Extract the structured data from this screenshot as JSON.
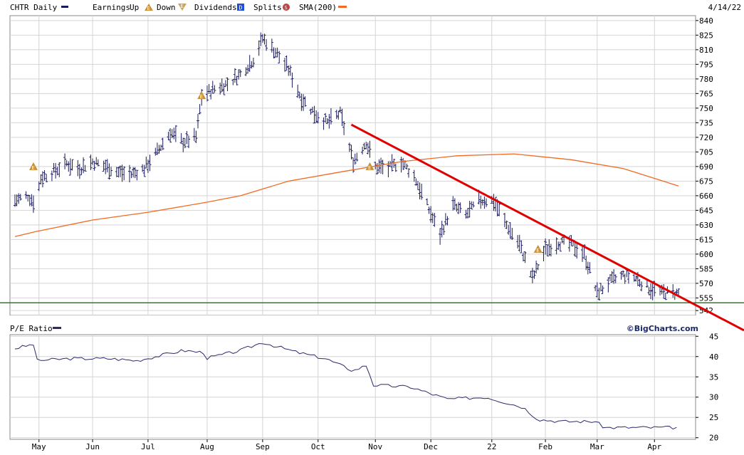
{
  "header": {
    "ticker_label": "CHTR Daily",
    "earnings_label": "Earnings",
    "up_label": "Up",
    "down_label": "Down",
    "dividends_label": "Dividends",
    "splits_label": "Splits",
    "sma_label": "SMA(200)",
    "date": "4/14/22",
    "markers": {
      "earnings": "E",
      "dividend": "D",
      "split": "S"
    }
  },
  "watermark": "©BigCharts.com",
  "colors": {
    "price_bars": "#1a1a5e",
    "sma": "#f26a21",
    "trendline": "#e00000",
    "support": "#2e7d1e",
    "pe_line": "#2b2b6b",
    "earnings_marker": "#c8903a",
    "dividend_marker": "#1f4fd6",
    "split_marker": "#c04040",
    "grid": "#d4d4d4"
  },
  "chart_data": [
    {
      "type": "line",
      "title": "CHTR Daily",
      "style": "ohlc-bars",
      "x_months": [
        "May",
        "Jun",
        "Jul",
        "Aug",
        "Sep",
        "Oct",
        "Nov",
        "Dec",
        "22",
        "Feb",
        "Mar",
        "Apr"
      ],
      "y_ticks": [
        542,
        555,
        570,
        585,
        600,
        615,
        630,
        645,
        660,
        675,
        690,
        705,
        720,
        735,
        750,
        765,
        780,
        795,
        810,
        825,
        840
      ],
      "ylim": [
        537,
        845
      ],
      "grid": true,
      "series": [
        {
          "name": "CHTR Daily",
          "points": [
            [
              "2021-04-20",
              655
            ],
            [
              "2021-04-27",
              660
            ],
            [
              "2021-05-01",
              652
            ],
            [
              "2021-05-04",
              678
            ],
            [
              "2021-05-11",
              685
            ],
            [
              "2021-05-18",
              693
            ],
            [
              "2021-05-25",
              688
            ],
            [
              "2021-06-01",
              695
            ],
            [
              "2021-06-08",
              690
            ],
            [
              "2021-06-15",
              684
            ],
            [
              "2021-06-22",
              682
            ],
            [
              "2021-06-29",
              688
            ],
            [
              "2021-07-06",
              705
            ],
            [
              "2021-07-13",
              725
            ],
            [
              "2021-07-20",
              715
            ],
            [
              "2021-07-27",
              720
            ],
            [
              "2021-07-30",
              762
            ],
            [
              "2021-08-06",
              770
            ],
            [
              "2021-08-13",
              775
            ],
            [
              "2021-08-20",
              785
            ],
            [
              "2021-08-27",
              800
            ],
            [
              "2021-09-01",
              822
            ],
            [
              "2021-09-08",
              808
            ],
            [
              "2021-09-15",
              790
            ],
            [
              "2021-09-22",
              760
            ],
            [
              "2021-09-29",
              745
            ],
            [
              "2021-10-06",
              735
            ],
            [
              "2021-10-13",
              745
            ],
            [
              "2021-10-20",
              695
            ],
            [
              "2021-10-27",
              715
            ],
            [
              "2021-11-01",
              690
            ],
            [
              "2021-11-08",
              688
            ],
            [
              "2021-11-15",
              695
            ],
            [
              "2021-11-22",
              680
            ],
            [
              "2021-11-29",
              650
            ],
            [
              "2021-12-06",
              620
            ],
            [
              "2021-12-13",
              650
            ],
            [
              "2021-12-20",
              640
            ],
            [
              "2021-12-27",
              655
            ],
            [
              "2022-01-04",
              655
            ],
            [
              "2022-01-11",
              630
            ],
            [
              "2022-01-18",
              610
            ],
            [
              "2022-01-25",
              575
            ],
            [
              "2022-02-01",
              605
            ],
            [
              "2022-02-08",
              612
            ],
            [
              "2022-02-15",
              610
            ],
            [
              "2022-02-22",
              600
            ],
            [
              "2022-03-01",
              560
            ],
            [
              "2022-03-08",
              572
            ],
            [
              "2022-03-15",
              578
            ],
            [
              "2022-03-22",
              575
            ],
            [
              "2022-03-29",
              565
            ],
            [
              "2022-04-05",
              560
            ],
            [
              "2022-04-14",
              560
            ]
          ]
        },
        {
          "name": "SMA(200)",
          "points": [
            [
              "2021-04-20",
              618
            ],
            [
              "2021-05-01",
              623
            ],
            [
              "2021-06-01",
              635
            ],
            [
              "2021-07-01",
              643
            ],
            [
              "2021-08-01",
              653
            ],
            [
              "2021-08-20",
              660
            ],
            [
              "2021-09-15",
              675
            ],
            [
              "2021-10-15",
              685
            ],
            [
              "2021-11-15",
              695
            ],
            [
              "2021-12-15",
              701
            ],
            [
              "2022-01-15",
              703
            ],
            [
              "2022-02-15",
              697
            ],
            [
              "2022-03-15",
              688
            ],
            [
              "2022-04-14",
              670
            ]
          ]
        }
      ],
      "annotations": [
        {
          "type": "trendline",
          "from": [
            "2021-10-19",
            733
          ],
          "to": [
            "2022-04-26",
            545
          ]
        },
        {
          "type": "support",
          "y": 550
        },
        {
          "type": "earnings",
          "date": "2021-04-30",
          "y": 690,
          "direction": "up"
        },
        {
          "type": "earnings",
          "date": "2021-07-30",
          "y": 763,
          "direction": "up"
        },
        {
          "type": "earnings",
          "date": "2021-10-29",
          "y": 690,
          "direction": "up"
        },
        {
          "type": "earnings",
          "date": "2022-01-28",
          "y": 605,
          "direction": "up"
        }
      ]
    },
    {
      "type": "line",
      "title": "P/E Ratio",
      "y_ticks": [
        20,
        25,
        30,
        35,
        40,
        45
      ],
      "ylim": [
        19.6,
        45.4
      ],
      "grid": true,
      "series": [
        {
          "name": "P/E Ratio",
          "points": [
            [
              "2021-04-20",
              42
            ],
            [
              "2021-04-30",
              43
            ],
            [
              "2021-05-01",
              39
            ],
            [
              "2021-05-20",
              39.5
            ],
            [
              "2021-06-10",
              39.5
            ],
            [
              "2021-06-25",
              39
            ],
            [
              "2021-07-05",
              40
            ],
            [
              "2021-07-20",
              41.5
            ],
            [
              "2021-07-31",
              41
            ],
            [
              "2021-08-01",
              39.5
            ],
            [
              "2021-08-20",
              41.5
            ],
            [
              "2021-09-01",
              43.5
            ],
            [
              "2021-09-20",
              41
            ],
            [
              "2021-10-05",
              39.5
            ],
            [
              "2021-10-20",
              36.5
            ],
            [
              "2021-10-28",
              38
            ],
            [
              "2021-10-30",
              33
            ],
            [
              "2021-11-20",
              32.5
            ],
            [
              "2021-12-10",
              29.5
            ],
            [
              "2021-12-31",
              30
            ],
            [
              "2022-01-20",
              27.5
            ],
            [
              "2022-01-28",
              24.5
            ],
            [
              "2022-02-10",
              24
            ],
            [
              "2022-02-28",
              24
            ],
            [
              "2022-03-05",
              22.5
            ],
            [
              "2022-03-31",
              22.5
            ],
            [
              "2022-04-14",
              22.5
            ]
          ]
        }
      ]
    }
  ]
}
